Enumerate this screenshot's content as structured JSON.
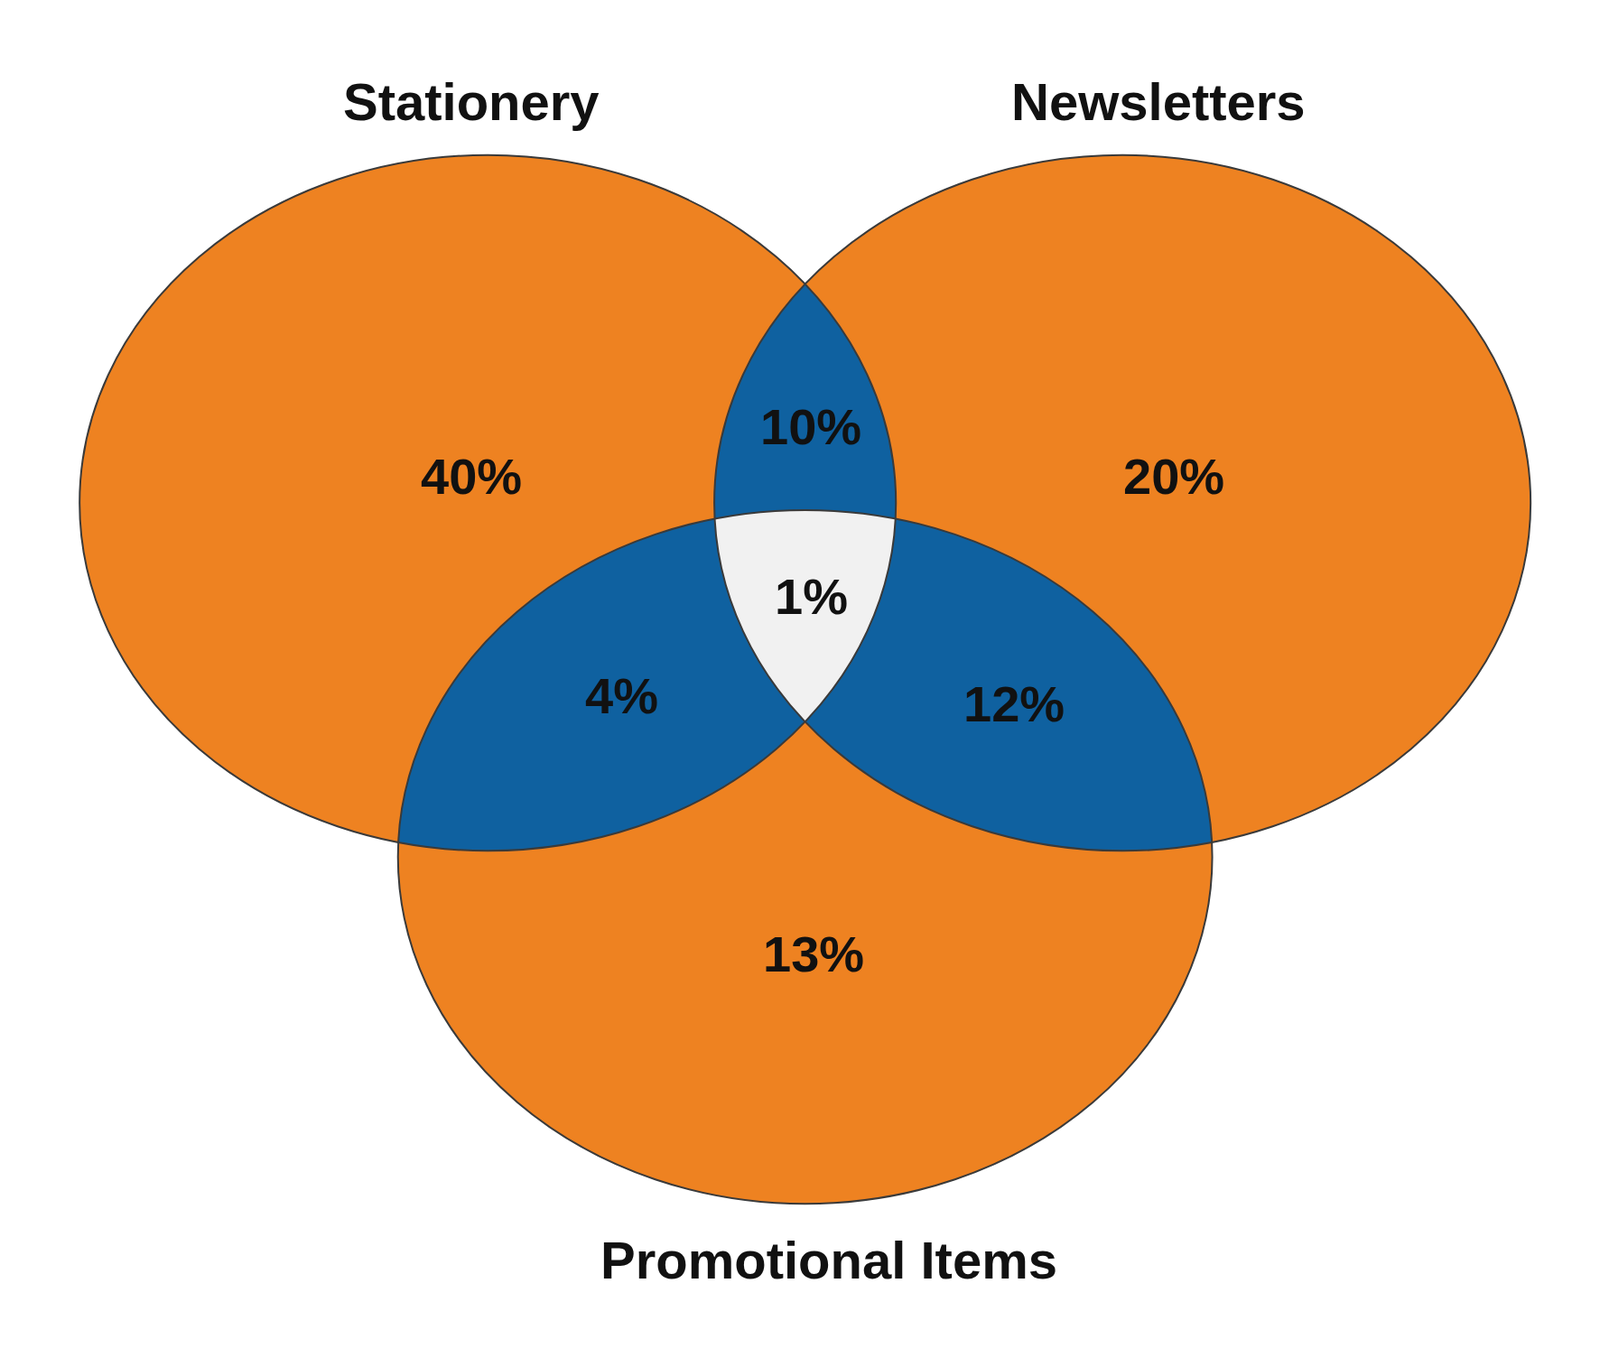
{
  "chart_data": {
    "type": "venn",
    "sets": [
      "Stationery",
      "Newsletters",
      "Promotional Items"
    ],
    "regions": [
      [
        "Stationery"
      ],
      [
        "Newsletters"
      ],
      [
        "Promotional Items"
      ],
      [
        "Stationery",
        "Newsletters"
      ],
      [
        "Stationery",
        "Promotional Items"
      ],
      [
        "Newsletters",
        "Promotional Items"
      ],
      [
        "Stationery",
        "Newsletters",
        "Promotional Items"
      ]
    ],
    "values": [
      40,
      20,
      13,
      10,
      4,
      12,
      1
    ],
    "value_labels": [
      "40%",
      "20%",
      "13%",
      "10%",
      "4%",
      "12%",
      "1%"
    ],
    "colors": [
      "#ee8221",
      "#ee8221",
      "#ee8221",
      "#0f61a0",
      "#0f61a0",
      "#0f61a0",
      "#f1f1f1"
    ],
    "data_labels": true
  }
}
